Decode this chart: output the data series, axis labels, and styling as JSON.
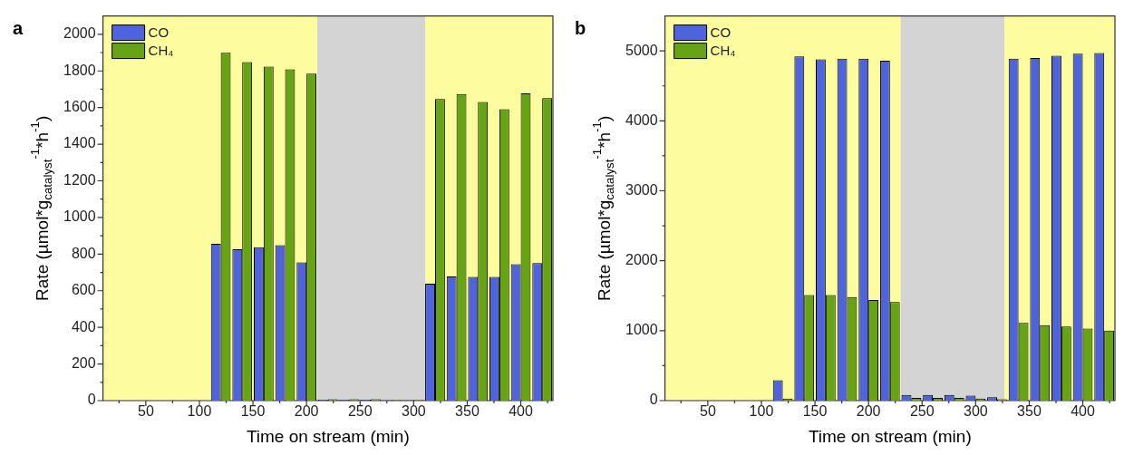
{
  "chart_data": [
    {
      "type": "bar",
      "title": "a",
      "xlabel": "Time on stream (min)",
      "ylabel": "Rate (µmol*g$_{catalyst}$$^{-1}$*h$^{-1}$)",
      "x": [
        120,
        140,
        160,
        180,
        200,
        220,
        240,
        260,
        280,
        300,
        320,
        340,
        360,
        380,
        400,
        420
      ],
      "series": [
        {
          "name": "CO",
          "color": "#4f63dd",
          "values": [
            856,
            826,
            838,
            848,
            755,
            5,
            5,
            5,
            3,
            3,
            638,
            678,
            676,
            676,
            745,
            751
          ]
        },
        {
          "name": "CH₄",
          "color": "#66a315",
          "values": [
            1899,
            1848,
            1824,
            1808,
            1785,
            8,
            8,
            8,
            4,
            4,
            1646,
            1674,
            1630,
            1591,
            1678,
            1652
          ]
        }
      ],
      "xlim": [
        10,
        430
      ],
      "xticks": [
        {
          "value": 25,
          "label": null
        },
        50,
        {
          "value": 75,
          "label": null
        },
        100,
        {
          "value": 125,
          "label": null
        },
        150,
        {
          "value": 175,
          "label": null
        },
        200,
        {
          "value": 225,
          "label": null
        },
        250,
        {
          "value": 275,
          "label": null
        },
        300,
        {
          "value": 325,
          "label": null
        },
        350,
        {
          "value": 375,
          "label": null
        },
        400,
        {
          "value": 425,
          "label": null
        }
      ],
      "ylim": [
        0,
        2100
      ],
      "yticks": [
        0,
        {
          "value": 100,
          "label": null
        },
        200,
        {
          "value": 300,
          "label": null
        },
        400,
        {
          "value": 500,
          "label": null
        },
        600,
        {
          "value": 700,
          "label": null
        },
        800,
        {
          "value": 900,
          "label": null
        },
        1000,
        {
          "value": 1100,
          "label": null
        },
        1200,
        {
          "value": 1300,
          "label": null
        },
        1400,
        {
          "value": 1500,
          "label": null
        },
        1600,
        {
          "value": 1700,
          "label": null
        },
        1800,
        {
          "value": 1900,
          "label": null
        },
        2000
      ],
      "bands": [
        {
          "axis": "x",
          "from": 10,
          "to": 210,
          "color": "#fdfd9f"
        },
        {
          "axis": "x",
          "from": 210,
          "to": 311,
          "color": "#d4d4d4"
        },
        {
          "axis": "x",
          "from": 311,
          "to": 430,
          "color": "#fdfd9f"
        }
      ],
      "legend": "top left",
      "grid": false
    },
    {
      "type": "bar",
      "title": "b",
      "xlabel": "Time on stream (min)",
      "ylabel": "Rate (µmol*g$_{catalyst}$$^{-1}$*h$^{-1}$)",
      "x": [
        120,
        140,
        160,
        180,
        200,
        220,
        240,
        260,
        280,
        300,
        320,
        340,
        360,
        380,
        400,
        420
      ],
      "series": [
        {
          "name": "CO",
          "color": "#4f63dd",
          "values": [
            290,
            4920,
            4880,
            4890,
            4890,
            4860,
            80,
            80,
            80,
            70,
            50,
            4890,
            4900,
            4930,
            4960,
            4970
          ]
        },
        {
          "name": "CH₄",
          "color": "#66a315",
          "values": [
            30,
            1510,
            1510,
            1480,
            1440,
            1410,
            40,
            40,
            40,
            30,
            20,
            1110,
            1080,
            1060,
            1030,
            1000
          ]
        }
      ],
      "xlim": [
        10,
        430
      ],
      "xticks": [
        {
          "value": 25,
          "label": null
        },
        50,
        {
          "value": 75,
          "label": null
        },
        100,
        {
          "value": 125,
          "label": null
        },
        150,
        {
          "value": 175,
          "label": null
        },
        200,
        {
          "value": 225,
          "label": null
        },
        250,
        {
          "value": 275,
          "label": null
        },
        300,
        {
          "value": 325,
          "label": null
        },
        350,
        {
          "value": 375,
          "label": null
        },
        400,
        {
          "value": 425,
          "label": null
        }
      ],
      "ylim": [
        0,
        5500
      ],
      "yticks": [
        0,
        {
          "value": 500,
          "label": null
        },
        1000,
        {
          "value": 1500,
          "label": null
        },
        2000,
        {
          "value": 2500,
          "label": null
        },
        3000,
        {
          "value": 3500,
          "label": null
        },
        4000,
        {
          "value": 4500,
          "label": null
        },
        5000
      ],
      "bands": [
        {
          "axis": "x",
          "from": 10,
          "to": 230,
          "color": "#fdfd9f"
        },
        {
          "axis": "x",
          "from": 230,
          "to": 327,
          "color": "#d4d4d4"
        },
        {
          "axis": "x",
          "from": 327,
          "to": 430,
          "color": "#fdfd9f"
        }
      ],
      "legend": "top left",
      "grid": false
    }
  ]
}
